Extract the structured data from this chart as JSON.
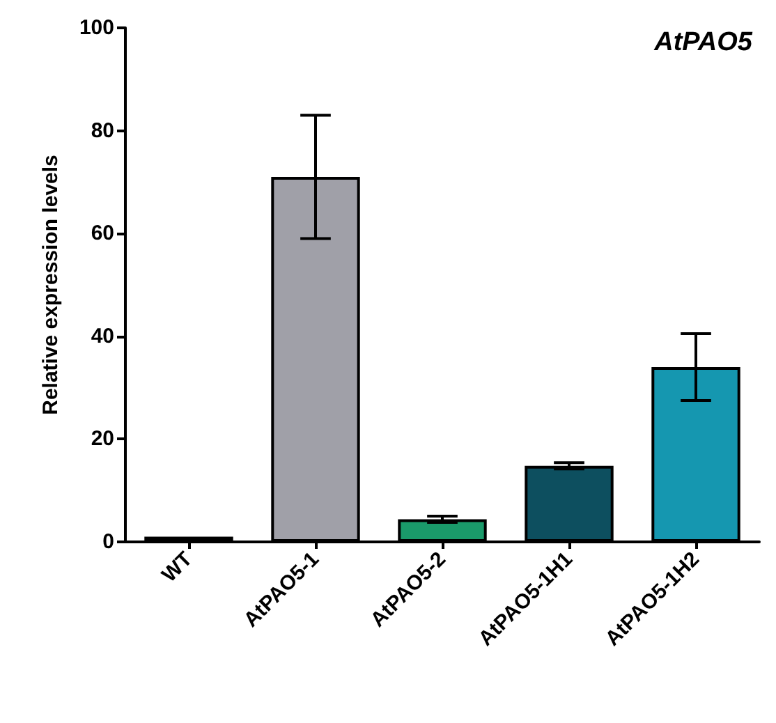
{
  "chart_data": {
    "type": "bar",
    "title": "AtPAO5",
    "ylabel": "Relative expression levels",
    "categories": [
      "WT",
      "AtPAO5-1",
      "AtPAO5-2",
      "AtPAO5-1H1",
      "AtPAO5-1H2"
    ],
    "values": [
      1,
      71,
      4.4,
      14.8,
      34
    ],
    "colors": [
      "#ffffff",
      "#a0a0a8",
      "#1a9a6a",
      "#0d4f5f",
      "#1597b0"
    ],
    "errors": [
      null,
      12,
      0.6,
      0.6,
      6.5
    ],
    "ylim": [
      0,
      100
    ],
    "yticks": [
      0,
      20,
      40,
      60,
      80,
      100
    ],
    "grid": false
  }
}
